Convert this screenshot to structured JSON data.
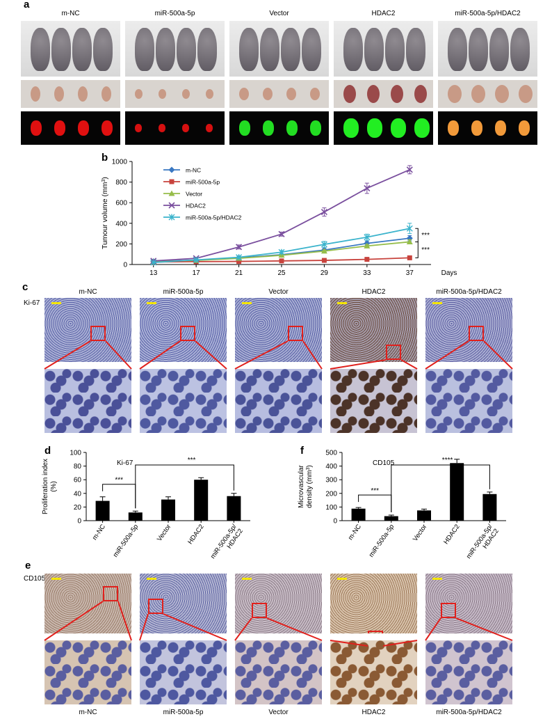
{
  "panel_letters": {
    "a": "a",
    "b": "b",
    "c": "c",
    "d": "d",
    "e": "e",
    "f": "f"
  },
  "panel_a": {
    "groups": [
      "m-NC",
      "miR-500a-5p",
      "Vector",
      "HDAC2",
      "miR-500a-5p/HDAC2"
    ],
    "fluorescence_colors": [
      "#e01010",
      "#d51010",
      "#22dd22",
      "#22ee22",
      "#f29a3a"
    ]
  },
  "panel_b": {
    "ylabel": "Tumour volume (mm3)",
    "xunit": "Days",
    "sig_upper": "***",
    "sig_lower": "***"
  },
  "panel_c": {
    "stain": "Ki-67",
    "groups": [
      "m-NC",
      "miR-500a-5p",
      "Vector",
      "HDAC2",
      "miR-500a-5p/HDAC2"
    ]
  },
  "panel_d": {
    "stain": "Ki-67",
    "sig_1": "***",
    "sig_2": "***"
  },
  "panel_f": {
    "stain": "CD105",
    "sig_1": "***",
    "sig_2": "****"
  },
  "panel_e": {
    "stain": "CD105",
    "groups": [
      "m-NC",
      "miR-500a-5p",
      "Vector",
      "HDAC2",
      "miR-500a-5p/HDAC2"
    ]
  },
  "chart_data": [
    {
      "id": "b",
      "type": "line",
      "x": [
        13,
        17,
        21,
        25,
        29,
        33,
        37
      ],
      "xlabel": "Days",
      "ylabel": "Tumour volume (mm3)",
      "ylim": [
        0,
        1000
      ],
      "yticks": [
        0,
        200,
        400,
        600,
        800,
        1000
      ],
      "legend": "top-left",
      "series": [
        {
          "name": "m-NC",
          "color": "#3a78c2",
          "marker": "diamond",
          "values": [
            30,
            42,
            65,
            95,
            140,
            205,
            255
          ],
          "errors": [
            5,
            6,
            8,
            10,
            15,
            20,
            25
          ]
        },
        {
          "name": "miR-500a-5p",
          "color": "#c8433d",
          "marker": "square",
          "values": [
            25,
            28,
            30,
            35,
            40,
            50,
            65
          ],
          "errors": [
            3,
            3,
            4,
            4,
            5,
            6,
            8
          ]
        },
        {
          "name": "Vector",
          "color": "#96bd4a",
          "marker": "triangle",
          "values": [
            28,
            40,
            60,
            90,
            130,
            180,
            220
          ],
          "errors": [
            4,
            5,
            7,
            9,
            12,
            15,
            20
          ]
        },
        {
          "name": "HDAC2",
          "color": "#7a4f9e",
          "marker": "x",
          "values": [
            35,
            60,
            170,
            295,
            510,
            740,
            920
          ],
          "errors": [
            5,
            8,
            20,
            20,
            40,
            50,
            40
          ]
        },
        {
          "name": "miR-500a-5p/HDAC2",
          "color": "#3ab3cc",
          "marker": "star",
          "values": [
            20,
            45,
            70,
            120,
            195,
            265,
            350
          ],
          "errors": [
            5,
            8,
            10,
            15,
            30,
            30,
            50
          ]
        }
      ]
    },
    {
      "id": "d",
      "type": "bar",
      "title": "Ki-67",
      "ylabel": "Proliferation index (%)",
      "ylim": [
        0,
        100
      ],
      "yticks": [
        0,
        20,
        40,
        60,
        80,
        100
      ],
      "categories": [
        "m-NC",
        "miR-500a-5p",
        "Vector",
        "HDAC2",
        "miR-500a-5p/HDAC2"
      ],
      "category_lines": [
        [
          "m-NC"
        ],
        [
          "miR-500a-5p"
        ],
        [
          "Vector"
        ],
        [
          "HDAC2"
        ],
        [
          "miR-500a-5p/",
          "HDAC2"
        ]
      ],
      "values": [
        29,
        12,
        31,
        60,
        36
      ],
      "errors": [
        6,
        2,
        4,
        3,
        4
      ]
    },
    {
      "id": "f",
      "type": "bar",
      "title": "CD105",
      "ylabel": "Microvascular density (mm3)",
      "ylim": [
        0,
        500
      ],
      "yticks": [
        0,
        100,
        200,
        300,
        400,
        500
      ],
      "categories": [
        "m-NC",
        "miR-500a-5p",
        "Vector",
        "HDAC2",
        "miR-500a-5p/HDAC2"
      ],
      "category_lines": [
        [
          "m-NC"
        ],
        [
          "miR-500a-5p"
        ],
        [
          "Vector"
        ],
        [
          "HDAC2"
        ],
        [
          "miR-500a-5p/",
          "HDAC2"
        ]
      ],
      "values": [
        88,
        33,
        75,
        422,
        195
      ],
      "errors": [
        8,
        8,
        10,
        28,
        15
      ]
    }
  ]
}
